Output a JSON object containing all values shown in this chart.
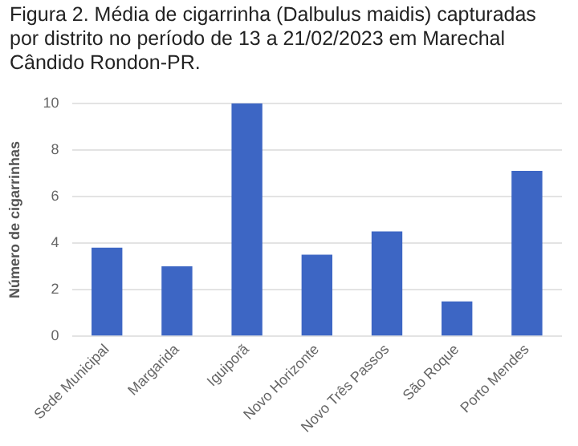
{
  "chart_data": {
    "type": "bar",
    "title": "Figura 2. Média de cigarrinha (Dalbulus maidis) capturadas por distrito no período de 13 a 21/02/2023 em Marechal Cândido Rondon-PR.",
    "ylabel": "Número de cigarrinhas",
    "categories": [
      "Sede Municipal",
      "Margarida",
      "Iguiporã",
      "Novo Horizonte",
      "Novo Três Passos",
      "São Roque",
      "Porto Mendes"
    ],
    "values": [
      3.8,
      3,
      10,
      3.5,
      4.5,
      1.5,
      7.1
    ],
    "color": "#3d66c4",
    "ylim": [
      0,
      10
    ],
    "yticks": [
      0,
      2,
      4,
      6,
      8,
      10
    ],
    "grid": "y",
    "legend": false
  }
}
